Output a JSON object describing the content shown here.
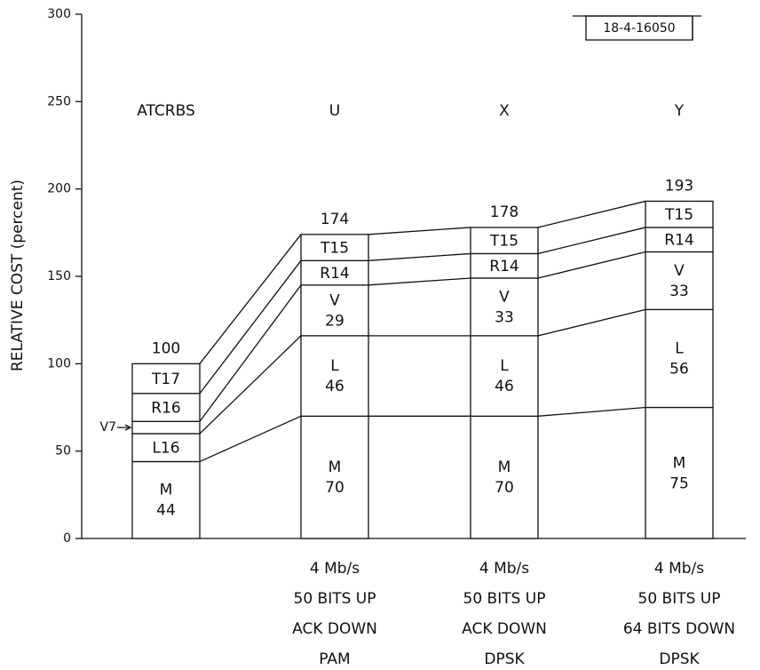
{
  "chart_data": {
    "type": "stacked_bar",
    "y_label": "RELATIVE COST (percent)",
    "annotation": "18-4-16050",
    "categories": [
      "ATCRBS",
      "U",
      "X",
      "Y"
    ],
    "descriptions": [
      null,
      [
        "4 Mb/s",
        "50 BITS UP",
        "ACK DOWN",
        "PAM"
      ],
      [
        "4 Mb/s",
        "50 BITS UP",
        "ACK DOWN",
        "DPSK"
      ],
      [
        "4 Mb/s",
        "50 BITS UP",
        "64 BITS DOWN",
        "DPSK"
      ]
    ],
    "totals": [
      100,
      174,
      178,
      193
    ],
    "series": [
      {
        "name": "M",
        "color": "#ffffff",
        "values": [
          44,
          70,
          70,
          75
        ]
      },
      {
        "name": "L",
        "color": "#ffffff",
        "values": [
          16,
          46,
          46,
          56
        ]
      },
      {
        "name": "V",
        "color": "#ffffff",
        "values": [
          7,
          29,
          33,
          33
        ]
      },
      {
        "name": "R",
        "color": "#ffffff",
        "values": [
          16,
          14,
          14,
          14
        ]
      },
      {
        "name": "T",
        "color": "#ffffff",
        "values": [
          17,
          15,
          15,
          15
        ]
      }
    ],
    "ylim": [
      0,
      300
    ],
    "yticks": [
      0,
      50,
      100,
      150,
      200,
      250,
      300
    ]
  }
}
